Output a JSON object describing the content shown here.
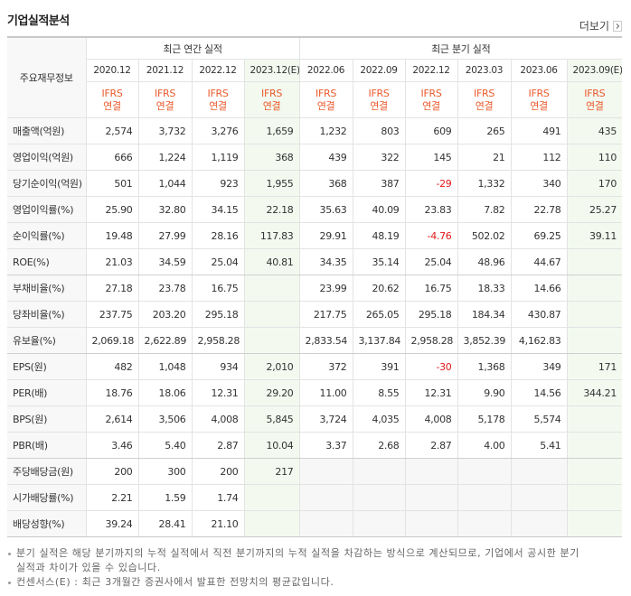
{
  "header": {
    "title": "기업실적분석",
    "more": "더보기"
  },
  "table": {
    "corner": "주요재무정보",
    "groups": [
      {
        "label": "최근 연간 실적",
        "periods": [
          {
            "date": "2020.12",
            "standard": "IFRS",
            "basis": "연결",
            "estimate": false
          },
          {
            "date": "2021.12",
            "standard": "IFRS",
            "basis": "연결",
            "estimate": false
          },
          {
            "date": "2022.12",
            "standard": "IFRS",
            "basis": "연결",
            "estimate": false
          },
          {
            "date": "2023.12(E)",
            "standard": "IFRS",
            "basis": "연결",
            "estimate": true
          }
        ]
      },
      {
        "label": "최근 분기 실적",
        "periods": [
          {
            "date": "2022.06",
            "standard": "IFRS",
            "basis": "연결",
            "estimate": false
          },
          {
            "date": "2022.09",
            "standard": "IFRS",
            "basis": "연결",
            "estimate": false
          },
          {
            "date": "2022.12",
            "standard": "IFRS",
            "basis": "연결",
            "estimate": false
          },
          {
            "date": "2023.03",
            "standard": "IFRS",
            "basis": "연결",
            "estimate": false
          },
          {
            "date": "2023.06",
            "standard": "IFRS",
            "basis": "연결",
            "estimate": false
          },
          {
            "date": "2023.09(E)",
            "standard": "IFRS",
            "basis": "연결",
            "estimate": true
          }
        ]
      }
    ],
    "rows": [
      {
        "label": "매출액(억원)",
        "values": [
          [
            "2,574",
            "3,732",
            "3,276",
            "1,659"
          ],
          [
            "1,232",
            "803",
            "609",
            "265",
            "491",
            "435"
          ]
        ]
      },
      {
        "label": "영업이익(억원)",
        "values": [
          [
            "666",
            "1,224",
            "1,119",
            "368"
          ],
          [
            "439",
            "322",
            "145",
            "21",
            "112",
            "110"
          ]
        ]
      },
      {
        "label": "당기순이익(억원)",
        "values": [
          [
            "501",
            "1,044",
            "923",
            "1,955"
          ],
          [
            "368",
            "387",
            "-29",
            "1,332",
            "340",
            "170"
          ]
        ]
      },
      {
        "label": "영업이익률(%)",
        "values": [
          [
            "25.90",
            "32.80",
            "34.15",
            "22.18"
          ],
          [
            "35.63",
            "40.09",
            "23.83",
            "7.82",
            "22.78",
            "25.27"
          ]
        ]
      },
      {
        "label": "순이익률(%)",
        "values": [
          [
            "19.48",
            "27.99",
            "28.16",
            "117.83"
          ],
          [
            "29.91",
            "48.19",
            "-4.76",
            "502.02",
            "69.25",
            "39.11"
          ]
        ]
      },
      {
        "label": "ROE(%)",
        "values": [
          [
            "21.03",
            "34.59",
            "25.04",
            "40.81"
          ],
          [
            "34.35",
            "35.14",
            "25.04",
            "48.96",
            "44.67",
            null
          ]
        ]
      },
      {
        "label": "부채비율(%)",
        "values": [
          [
            "27.18",
            "23.78",
            "16.75",
            null
          ],
          [
            "23.99",
            "20.62",
            "16.75",
            "18.33",
            "14.66",
            null
          ]
        ]
      },
      {
        "label": "당좌비율(%)",
        "values": [
          [
            "237.75",
            "203.20",
            "295.18",
            null
          ],
          [
            "217.75",
            "265.05",
            "295.18",
            "184.34",
            "430.87",
            null
          ]
        ]
      },
      {
        "label": "유보율(%)",
        "values": [
          [
            "2,069.18",
            "2,622.89",
            "2,958.28",
            null
          ],
          [
            "2,833.54",
            "3,137.84",
            "2,958.28",
            "3,852.39",
            "4,162.83",
            null
          ]
        ]
      },
      {
        "label": "EPS(원)",
        "values": [
          [
            "482",
            "1,048",
            "934",
            "2,010"
          ],
          [
            "372",
            "391",
            "-30",
            "1,368",
            "349",
            "171"
          ]
        ]
      },
      {
        "label": "PER(배)",
        "values": [
          [
            "18.76",
            "18.06",
            "12.31",
            "29.20"
          ],
          [
            "11.00",
            "8.55",
            "12.31",
            "9.90",
            "14.56",
            "344.21"
          ]
        ]
      },
      {
        "label": "BPS(원)",
        "values": [
          [
            "2,614",
            "3,506",
            "4,008",
            "5,845"
          ],
          [
            "3,724",
            "4,035",
            "4,008",
            "5,178",
            "5,574",
            null
          ]
        ]
      },
      {
        "label": "PBR(배)",
        "values": [
          [
            "3.46",
            "5.40",
            "2.87",
            "10.04"
          ],
          [
            "3.37",
            "2.68",
            "2.87",
            "4.00",
            "5.41",
            null
          ]
        ]
      },
      {
        "label": "주당배당금(원)",
        "values": [
          [
            "200",
            "300",
            "200",
            "217"
          ],
          [
            null,
            null,
            null,
            null,
            null,
            null
          ]
        ]
      },
      {
        "label": "시가배당률(%)",
        "values": [
          [
            "2.21",
            "1.59",
            "1.74",
            null
          ],
          [
            null,
            null,
            null,
            null,
            null,
            null
          ]
        ]
      },
      {
        "label": "배당성향(%)",
        "values": [
          [
            "39.24",
            "28.41",
            "21.10",
            null
          ],
          [
            null,
            null,
            null,
            null,
            null,
            null
          ]
        ]
      }
    ],
    "group_breaks": [
      "ROE(%)",
      "유보율(%)",
      "PBR(배)"
    ]
  },
  "footnotes": [
    "분기 실적은 해당 분기까지의 누적 실적에서 직전 분기까지의 누적 실적을 차감하는 방식으로 계산되므로, 기업에서 공시한 분기 실적과 차이가 있을 수 있습니다.",
    "컨센서스(E) : 최근 3개월간 증권사에서 발표한 전망치의 평균값입니다."
  ]
}
